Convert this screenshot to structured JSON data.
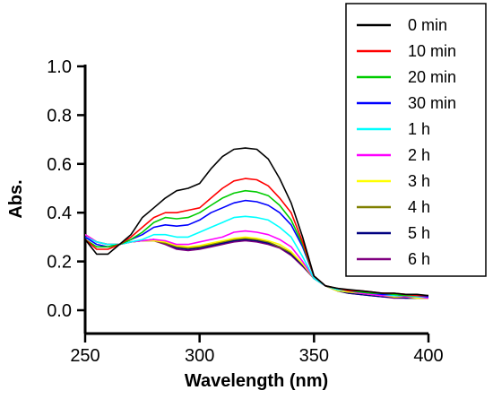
{
  "chart_data": {
    "type": "line",
    "title": "",
    "xlabel": "Wavelength (nm)",
    "ylabel": "Abs.",
    "xlim": [
      250,
      400
    ],
    "ylim": [
      -0.1,
      1.0
    ],
    "x_ticks": [
      250,
      300,
      350,
      400
    ],
    "x_tick_labels": [
      "250",
      "300",
      "350",
      "400"
    ],
    "y_ticks": [
      0.0,
      0.2,
      0.4,
      0.6,
      0.8,
      1.0
    ],
    "y_tick_labels": [
      "0.0",
      "0.2",
      "0.4",
      "0.6",
      "0.8",
      "1.0"
    ],
    "grid": false,
    "legend_position": "top-right",
    "x": [
      250,
      255,
      260,
      265,
      270,
      275,
      280,
      285,
      290,
      295,
      300,
      305,
      310,
      315,
      320,
      325,
      330,
      335,
      340,
      345,
      350,
      355,
      360,
      365,
      370,
      375,
      380,
      385,
      390,
      395,
      400
    ],
    "series": [
      {
        "name": "0 min",
        "color": "#000000",
        "values": [
          0.29,
          0.23,
          0.23,
          0.27,
          0.31,
          0.38,
          0.42,
          0.46,
          0.49,
          0.5,
          0.52,
          0.58,
          0.63,
          0.66,
          0.665,
          0.66,
          0.62,
          0.54,
          0.44,
          0.3,
          0.14,
          0.1,
          0.09,
          0.085,
          0.08,
          0.075,
          0.07,
          0.07,
          0.065,
          0.065,
          0.06
        ]
      },
      {
        "name": "10 min",
        "color": "#ff0000",
        "values": [
          0.29,
          0.25,
          0.25,
          0.27,
          0.3,
          0.34,
          0.38,
          0.4,
          0.4,
          0.41,
          0.42,
          0.46,
          0.5,
          0.53,
          0.54,
          0.535,
          0.51,
          0.46,
          0.4,
          0.28,
          0.14,
          0.1,
          0.09,
          0.08,
          0.08,
          0.075,
          0.07,
          0.07,
          0.065,
          0.06,
          0.06
        ]
      },
      {
        "name": "20 min",
        "color": "#00cc00",
        "values": [
          0.29,
          0.26,
          0.26,
          0.27,
          0.29,
          0.32,
          0.36,
          0.38,
          0.375,
          0.38,
          0.4,
          0.43,
          0.46,
          0.48,
          0.49,
          0.485,
          0.47,
          0.43,
          0.37,
          0.27,
          0.14,
          0.1,
          0.09,
          0.08,
          0.075,
          0.07,
          0.07,
          0.065,
          0.06,
          0.06,
          0.06
        ]
      },
      {
        "name": "30 min",
        "color": "#0000ff",
        "values": [
          0.3,
          0.27,
          0.26,
          0.27,
          0.29,
          0.31,
          0.34,
          0.35,
          0.345,
          0.35,
          0.37,
          0.4,
          0.42,
          0.44,
          0.45,
          0.445,
          0.43,
          0.4,
          0.35,
          0.26,
          0.14,
          0.1,
          0.09,
          0.08,
          0.075,
          0.07,
          0.065,
          0.065,
          0.06,
          0.06,
          0.055
        ]
      },
      {
        "name": "1 h",
        "color": "#00ffff",
        "values": [
          0.3,
          0.28,
          0.27,
          0.27,
          0.28,
          0.29,
          0.31,
          0.31,
          0.3,
          0.3,
          0.32,
          0.34,
          0.36,
          0.38,
          0.385,
          0.38,
          0.37,
          0.34,
          0.3,
          0.22,
          0.13,
          0.1,
          0.085,
          0.08,
          0.075,
          0.07,
          0.065,
          0.06,
          0.06,
          0.055,
          0.055
        ]
      },
      {
        "name": "2 h",
        "color": "#ff00ff",
        "values": [
          0.31,
          0.28,
          0.27,
          0.27,
          0.28,
          0.285,
          0.29,
          0.285,
          0.27,
          0.27,
          0.28,
          0.29,
          0.3,
          0.32,
          0.325,
          0.32,
          0.31,
          0.29,
          0.26,
          0.2,
          0.13,
          0.1,
          0.085,
          0.08,
          0.07,
          0.065,
          0.06,
          0.06,
          0.055,
          0.055,
          0.05
        ]
      },
      {
        "name": "3 h",
        "color": "#ffff00",
        "values": [
          0.31,
          0.28,
          0.27,
          0.27,
          0.28,
          0.285,
          0.285,
          0.28,
          0.265,
          0.26,
          0.265,
          0.275,
          0.285,
          0.295,
          0.3,
          0.295,
          0.285,
          0.27,
          0.24,
          0.19,
          0.13,
          0.1,
          0.08,
          0.075,
          0.07,
          0.065,
          0.06,
          0.055,
          0.055,
          0.05,
          0.05
        ]
      },
      {
        "name": "4 h",
        "color": "#808000",
        "values": [
          0.31,
          0.28,
          0.27,
          0.27,
          0.28,
          0.285,
          0.285,
          0.275,
          0.26,
          0.255,
          0.26,
          0.27,
          0.28,
          0.29,
          0.295,
          0.29,
          0.28,
          0.26,
          0.235,
          0.19,
          0.13,
          0.1,
          0.08,
          0.075,
          0.07,
          0.065,
          0.06,
          0.055,
          0.055,
          0.05,
          0.05
        ]
      },
      {
        "name": "5 h",
        "color": "#000080",
        "values": [
          0.31,
          0.28,
          0.27,
          0.27,
          0.28,
          0.285,
          0.29,
          0.275,
          0.255,
          0.25,
          0.255,
          0.265,
          0.275,
          0.285,
          0.29,
          0.285,
          0.275,
          0.26,
          0.23,
          0.185,
          0.13,
          0.1,
          0.08,
          0.07,
          0.065,
          0.06,
          0.055,
          0.055,
          0.05,
          0.05,
          0.05
        ]
      },
      {
        "name": "6 h",
        "color": "#800080",
        "values": [
          0.31,
          0.28,
          0.27,
          0.27,
          0.28,
          0.285,
          0.285,
          0.27,
          0.25,
          0.245,
          0.25,
          0.26,
          0.27,
          0.28,
          0.285,
          0.28,
          0.27,
          0.255,
          0.225,
          0.18,
          0.13,
          0.1,
          0.08,
          0.07,
          0.065,
          0.06,
          0.055,
          0.05,
          0.05,
          0.05,
          0.05
        ]
      }
    ]
  }
}
